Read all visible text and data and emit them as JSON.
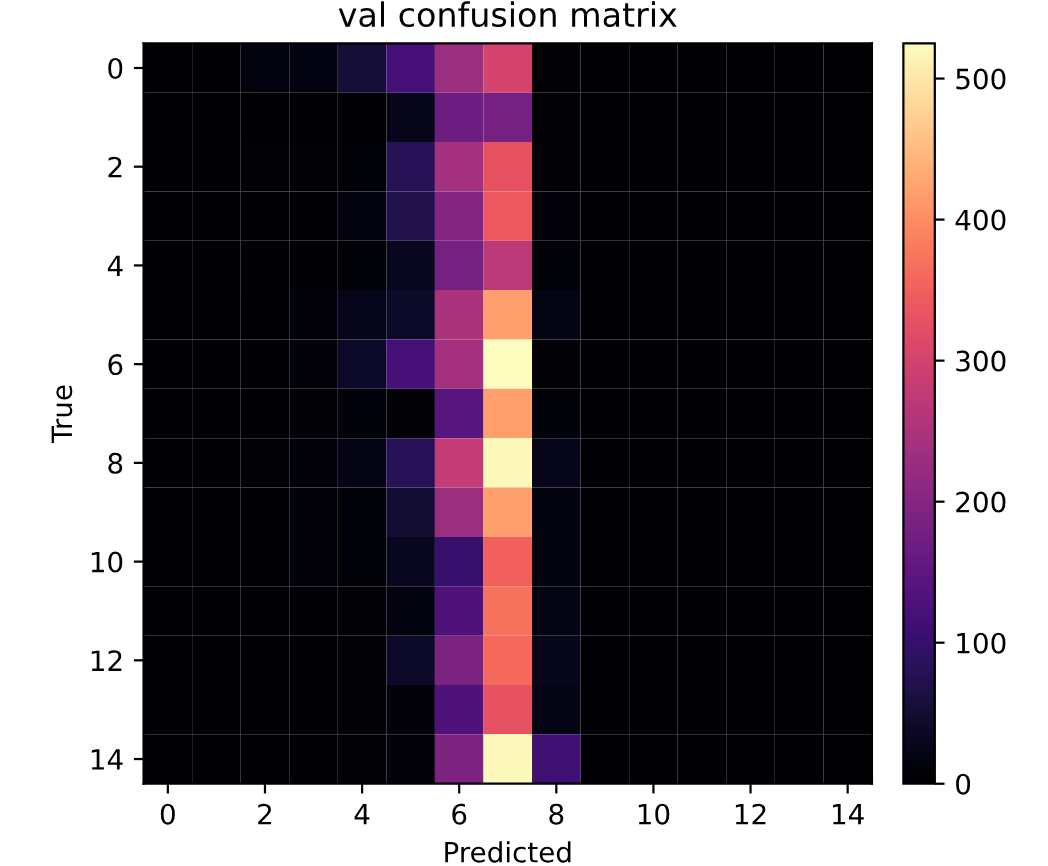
{
  "chart_data": {
    "type": "heatmap",
    "title": "val confusion matrix",
    "xlabel": "Predicted",
    "ylabel": "True",
    "categories": [
      "0",
      null,
      "2",
      null,
      "4",
      null,
      "6",
      null,
      "8",
      null,
      "10",
      null,
      "12",
      null,
      "14"
    ],
    "y_categories": [
      "0",
      null,
      "2",
      null,
      "4",
      null,
      "6",
      null,
      "8",
      null,
      "10",
      null,
      "12",
      null,
      "14"
    ],
    "cells": [
      [
        0,
        3,
        15,
        18,
        55,
        120,
        230,
        300,
        5,
        0,
        0,
        0,
        0,
        0,
        0
      ],
      [
        0,
        0,
        2,
        2,
        3,
        25,
        170,
        180,
        5,
        0,
        0,
        0,
        0,
        0,
        0
      ],
      [
        0,
        2,
        5,
        5,
        8,
        80,
        240,
        330,
        5,
        0,
        0,
        0,
        0,
        0,
        0
      ],
      [
        0,
        0,
        2,
        2,
        15,
        70,
        200,
        340,
        10,
        0,
        0,
        0,
        0,
        0,
        0
      ],
      [
        0,
        3,
        3,
        2,
        8,
        30,
        180,
        270,
        8,
        0,
        0,
        0,
        0,
        0,
        0
      ],
      [
        0,
        0,
        2,
        10,
        25,
        40,
        250,
        420,
        20,
        0,
        0,
        0,
        0,
        0,
        0
      ],
      [
        0,
        0,
        3,
        10,
        40,
        120,
        240,
        525,
        5,
        0,
        0,
        0,
        0,
        0,
        0
      ],
      [
        0,
        0,
        2,
        6,
        12,
        5,
        140,
        420,
        8,
        0,
        0,
        0,
        0,
        0,
        0
      ],
      [
        0,
        0,
        5,
        10,
        20,
        80,
        280,
        520,
        25,
        0,
        0,
        0,
        0,
        0,
        0
      ],
      [
        0,
        0,
        2,
        10,
        8,
        50,
        230,
        420,
        15,
        0,
        0,
        0,
        0,
        0,
        0
      ],
      [
        0,
        0,
        2,
        10,
        8,
        30,
        100,
        350,
        15,
        0,
        0,
        0,
        0,
        0,
        0
      ],
      [
        0,
        0,
        0,
        0,
        5,
        15,
        130,
        370,
        20,
        0,
        0,
        0,
        0,
        0,
        0
      ],
      [
        0,
        0,
        0,
        0,
        5,
        40,
        190,
        360,
        25,
        0,
        0,
        0,
        0,
        0,
        0
      ],
      [
        0,
        0,
        0,
        0,
        5,
        10,
        130,
        330,
        20,
        0,
        0,
        0,
        0,
        0,
        0
      ],
      [
        0,
        0,
        0,
        0,
        5,
        10,
        190,
        520,
        110,
        0,
        0,
        0,
        0,
        0,
        0
      ]
    ],
    "clim": [
      0,
      525
    ],
    "cticks": [
      0,
      100,
      200,
      300,
      400,
      500
    ]
  }
}
